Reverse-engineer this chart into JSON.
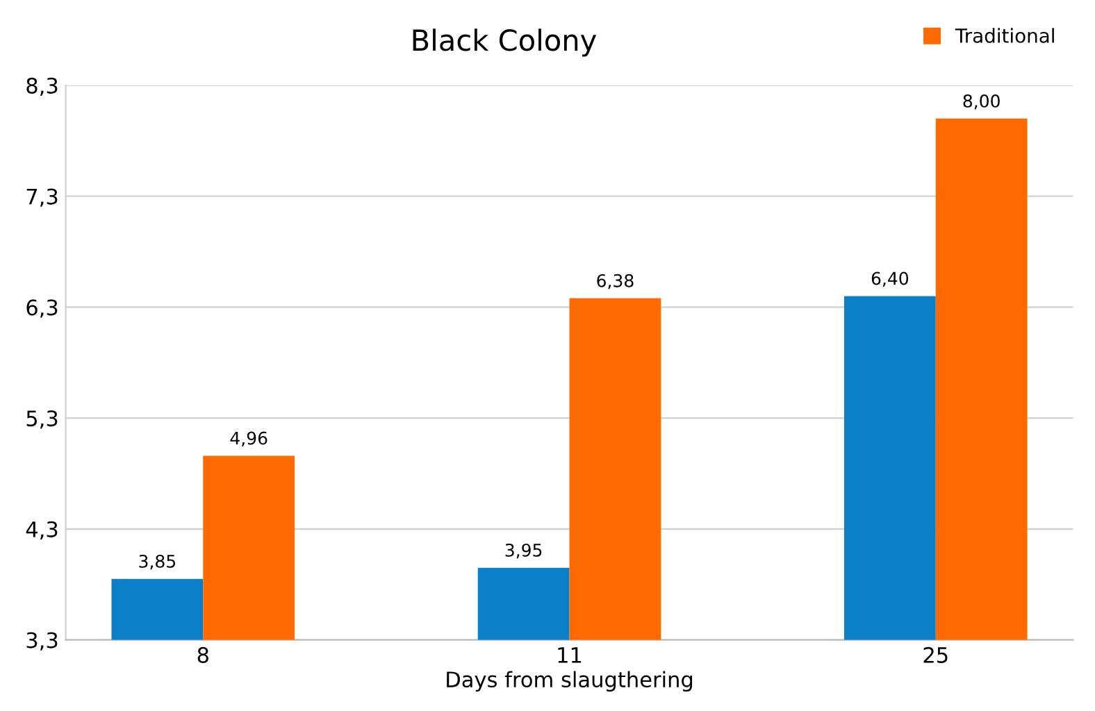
{
  "chart_data": {
    "type": "bar",
    "title": "Black Colony",
    "xlabel": "Days from slaugthering",
    "categories": [
      "8",
      "11",
      "25"
    ],
    "series": [
      {
        "color": "#0a7fc8",
        "values": [
          3.85,
          3.95,
          6.4
        ],
        "value_labels": [
          "3,85",
          "3,95",
          "6,40"
        ]
      },
      {
        "name": "Traditional",
        "color": "#ff6a00",
        "values": [
          4.96,
          6.38,
          8.0
        ],
        "value_labels": [
          "4,96",
          "6,38",
          "8,00"
        ]
      }
    ],
    "ylim": [
      3.3,
      8.3
    ],
    "yticks": [
      {
        "value": 3.3,
        "label": "3,3"
      },
      {
        "value": 4.3,
        "label": "4,3"
      },
      {
        "value": 5.3,
        "label": "5,3"
      },
      {
        "value": 6.3,
        "label": "6,3"
      },
      {
        "value": 7.3,
        "label": "7,3"
      },
      {
        "value": 8.3,
        "label": "8,3"
      }
    ],
    "grid": "y",
    "legend": "top right"
  }
}
